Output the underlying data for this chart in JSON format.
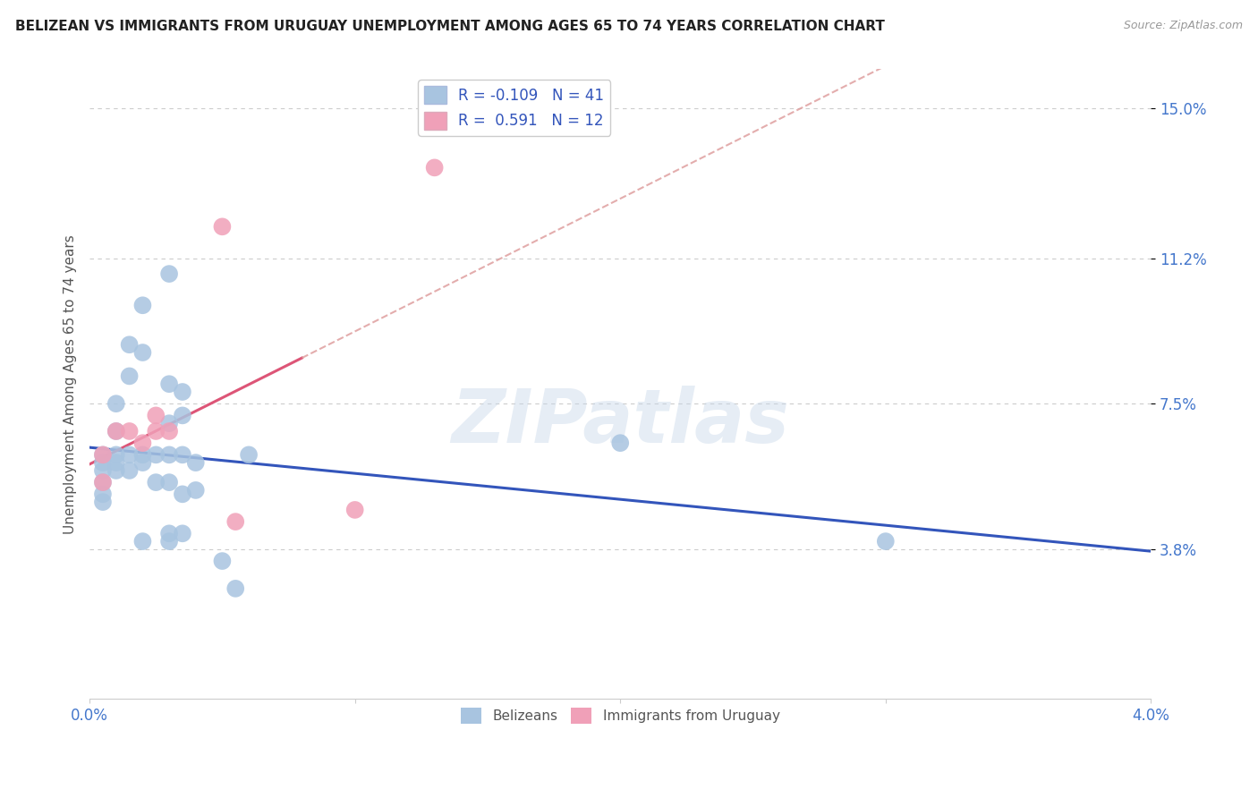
{
  "title": "BELIZEAN VS IMMIGRANTS FROM URUGUAY UNEMPLOYMENT AMONG AGES 65 TO 74 YEARS CORRELATION CHART",
  "source": "Source: ZipAtlas.com",
  "ylabel": "Unemployment Among Ages 65 to 74 years",
  "xlim": [
    0.0,
    0.04
  ],
  "ylim": [
    0.0,
    0.16
  ],
  "xticks": [
    0.0,
    0.01,
    0.02,
    0.03,
    0.04
  ],
  "xticklabels": [
    "0.0%",
    "",
    "",
    "",
    "4.0%"
  ],
  "ytick_positions": [
    0.038,
    0.075,
    0.112,
    0.15
  ],
  "ytick_labels": [
    "3.8%",
    "7.5%",
    "11.2%",
    "15.0%"
  ],
  "blue_R": "-0.109",
  "blue_N": "41",
  "pink_R": "0.591",
  "pink_N": "12",
  "blue_color": "#a8c4e0",
  "pink_color": "#f0a0b8",
  "blue_line_color": "#3355bb",
  "pink_line_color": "#dd5577",
  "blue_scatter": [
    [
      0.0005,
      0.062
    ],
    [
      0.0005,
      0.06
    ],
    [
      0.0005,
      0.058
    ],
    [
      0.0005,
      0.055
    ],
    [
      0.0005,
      0.052
    ],
    [
      0.0005,
      0.05
    ],
    [
      0.001,
      0.075
    ],
    [
      0.001,
      0.068
    ],
    [
      0.001,
      0.062
    ],
    [
      0.001,
      0.06
    ],
    [
      0.001,
      0.058
    ],
    [
      0.0015,
      0.09
    ],
    [
      0.0015,
      0.082
    ],
    [
      0.0015,
      0.062
    ],
    [
      0.0015,
      0.058
    ],
    [
      0.002,
      0.1
    ],
    [
      0.002,
      0.088
    ],
    [
      0.002,
      0.062
    ],
    [
      0.002,
      0.06
    ],
    [
      0.002,
      0.04
    ],
    [
      0.0025,
      0.062
    ],
    [
      0.0025,
      0.055
    ],
    [
      0.003,
      0.108
    ],
    [
      0.003,
      0.08
    ],
    [
      0.003,
      0.07
    ],
    [
      0.003,
      0.062
    ],
    [
      0.003,
      0.055
    ],
    [
      0.003,
      0.042
    ],
    [
      0.003,
      0.04
    ],
    [
      0.0035,
      0.078
    ],
    [
      0.0035,
      0.072
    ],
    [
      0.0035,
      0.062
    ],
    [
      0.0035,
      0.052
    ],
    [
      0.0035,
      0.042
    ],
    [
      0.004,
      0.06
    ],
    [
      0.004,
      0.053
    ],
    [
      0.005,
      0.035
    ],
    [
      0.0055,
      0.028
    ],
    [
      0.006,
      0.062
    ],
    [
      0.02,
      0.065
    ],
    [
      0.03,
      0.04
    ]
  ],
  "pink_scatter": [
    [
      0.0005,
      0.062
    ],
    [
      0.0005,
      0.055
    ],
    [
      0.001,
      0.068
    ],
    [
      0.0015,
      0.068
    ],
    [
      0.002,
      0.065
    ],
    [
      0.0025,
      0.072
    ],
    [
      0.0025,
      0.068
    ],
    [
      0.003,
      0.068
    ],
    [
      0.005,
      0.12
    ],
    [
      0.0055,
      0.045
    ],
    [
      0.01,
      0.048
    ],
    [
      0.013,
      0.135
    ]
  ],
  "watermark": "ZIPatlas",
  "background_color": "#ffffff",
  "grid_color": "#cccccc",
  "dashed_line_color": "#dd9999"
}
